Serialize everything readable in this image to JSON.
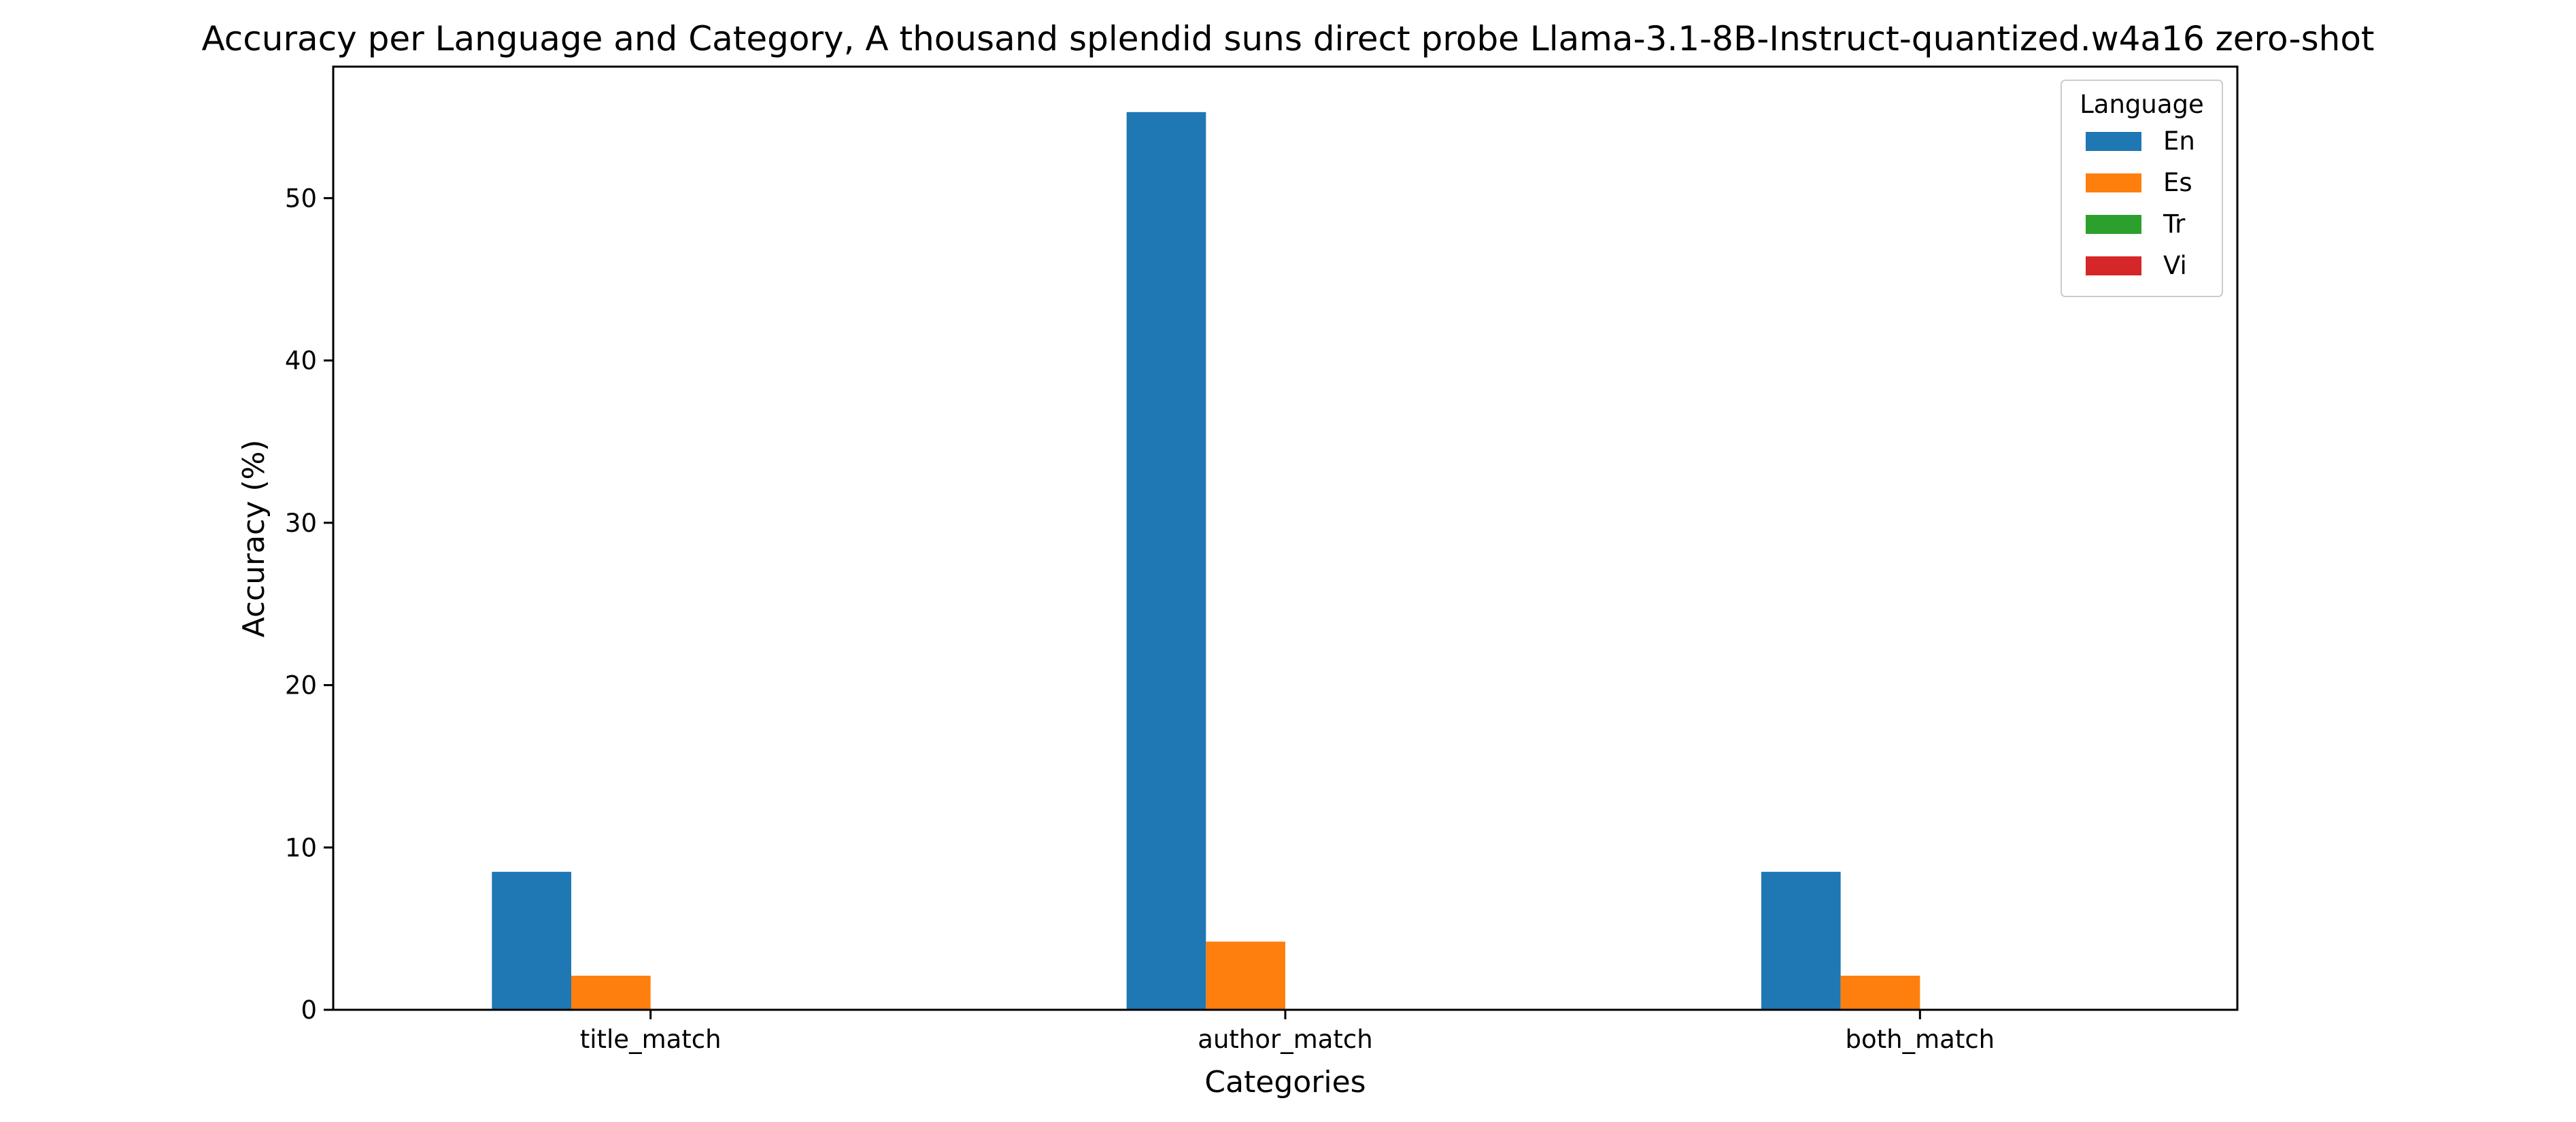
{
  "chart_data": {
    "type": "bar",
    "title": "Accuracy per Language and Category, A thousand splendid suns direct probe Llama-3.1-8B-Instruct-quantized.w4a16 zero-shot",
    "xlabel": "Categories",
    "ylabel": "Accuracy (%)",
    "categories": [
      "title_match",
      "author_match",
      "both_match"
    ],
    "ylim": [
      0,
      58.1
    ],
    "yticks": [
      0,
      10,
      20,
      30,
      40,
      50
    ],
    "grid": false,
    "legend": {
      "title": "Language",
      "placement": "top-right"
    },
    "series": [
      {
        "name": "En",
        "color": "#1f77b4",
        "values": [
          8.5,
          55.3,
          8.5
        ]
      },
      {
        "name": "Es",
        "color": "#ff7f0e",
        "values": [
          2.1,
          4.2,
          2.1
        ]
      },
      {
        "name": "Tr",
        "color": "#2ca02c",
        "values": [
          0,
          0,
          0
        ]
      },
      {
        "name": "Vi",
        "color": "#d62728",
        "values": [
          0,
          0,
          0
        ]
      }
    ]
  }
}
